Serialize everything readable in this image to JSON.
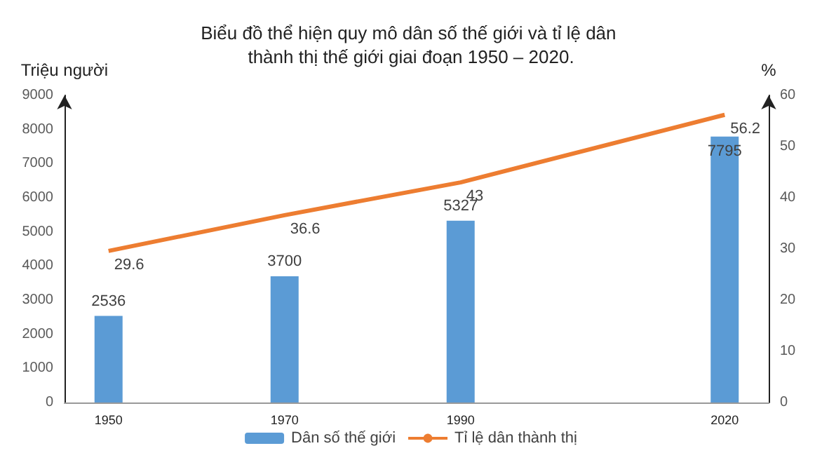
{
  "chart_data": {
    "type": "bar",
    "title": "Biểu đồ thể hiện quy mô dân số thế giới và tỉ lệ dân thành thị thế giới giai đoạn 1950 – 2020.",
    "ylabel": "Triệu người",
    "y2label": "%",
    "x": [
      1950,
      1970,
      1990,
      2020
    ],
    "xlim": [
      1945,
      2025
    ],
    "xticks": [
      1950,
      1970,
      1990,
      2020
    ],
    "ylim": [
      0,
      9000
    ],
    "yticks": [
      0,
      1000,
      2000,
      3000,
      4000,
      5000,
      6000,
      7000,
      8000,
      9000
    ],
    "y2lim": [
      0,
      60
    ],
    "y2ticks": [
      0,
      10,
      20,
      30,
      40,
      50,
      60
    ],
    "series": [
      {
        "name": "Dân số thế giới",
        "color": "#5b9bd5",
        "values": [
          2536,
          3700,
          5327,
          7795
        ]
      },
      {
        "name": "Tỉ lệ dân thành thị",
        "type": "line",
        "axis": "y2",
        "color": "#ed7d31",
        "values": [
          29.6,
          36.6,
          43,
          56.2
        ]
      }
    ],
    "data_labels": true,
    "legend": "bottom",
    "grid": false,
    "marker": "none"
  }
}
